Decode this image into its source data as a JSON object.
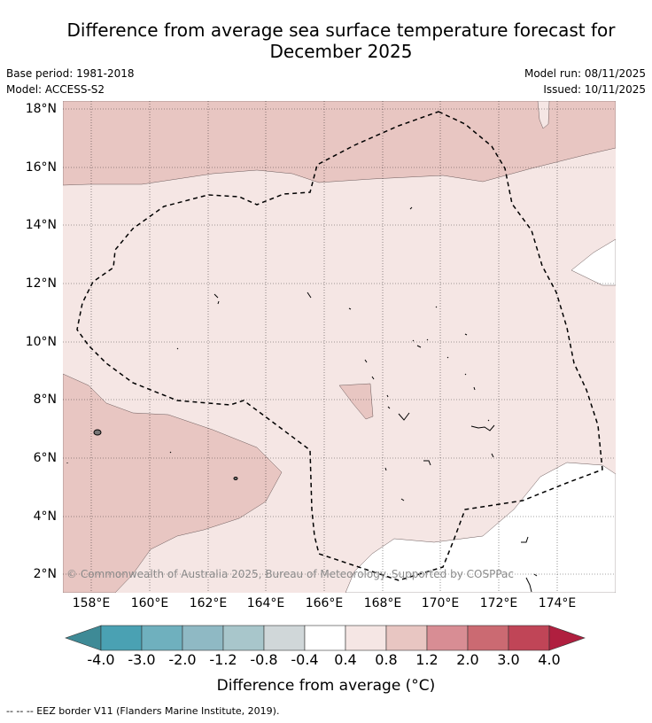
{
  "title": {
    "line1": "Difference from average sea surface temperature forecast for",
    "line2": "December 2025"
  },
  "meta": {
    "base_period": "Base period: 1981-2018",
    "model": "Model: ACCESS-S2",
    "model_run": "Model run: 08/11/2025",
    "issued": "Issued: 10/11/2025"
  },
  "map": {
    "lat_labels": [
      "18°N",
      "16°N",
      "14°N",
      "12°N",
      "10°N",
      "8°N",
      "6°N",
      "4°N",
      "2°N"
    ],
    "lon_labels": [
      "158°E",
      "160°E",
      "162°E",
      "164°E",
      "166°E",
      "168°E",
      "170°E",
      "172°E",
      "174°E"
    ],
    "copyright": "© Commonwealth of Australia 2025, Bureau of Meteorology. Supported by COSPPac",
    "colors": {
      "band_04_08": "#f5e6e4",
      "band_08_12": "#e8c6c2",
      "coast": "#000000"
    }
  },
  "colorbar": {
    "ticks": [
      "-4.0",
      "-3.0",
      "-2.0",
      "-1.2",
      "-0.8",
      "-0.4",
      "0.4",
      "0.8",
      "1.2",
      "2.0",
      "3.0",
      "4.0"
    ],
    "colors": [
      "#3e8a96",
      "#4aa1b3",
      "#6fb0be",
      "#8fb9c4",
      "#a8c6cb",
      "#d0d7d9",
      "#ffffff",
      "#f5e6e4",
      "#e8c6c2",
      "#d88d94",
      "#cb6a72",
      "#c04557",
      "#b01f3f"
    ],
    "label": "Difference from average (°C)"
  },
  "legend": {
    "eez": "--  --  -- EEZ border V11 (Flanders Marine Institute, 2019)."
  }
}
